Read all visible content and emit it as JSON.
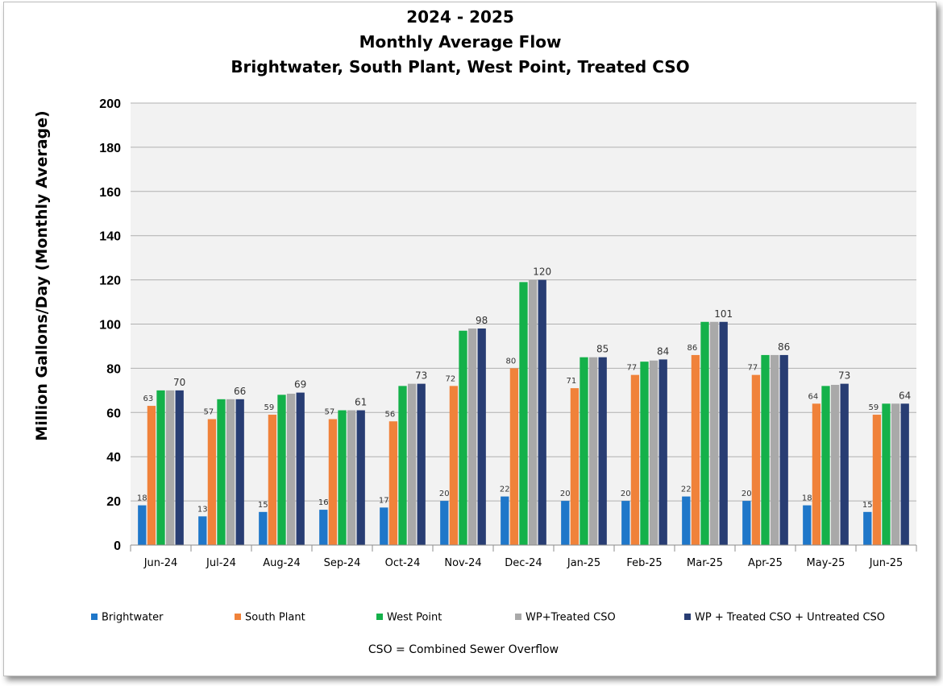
{
  "chart_data": {
    "type": "bar",
    "title_lines": [
      "2024 - 2025",
      "Monthly Average Flow",
      "Brightwater, South Plant, West Point, Treated CSO"
    ],
    "xlabel": "",
    "ylabel": "Million Gallons/Day (Monthly Average)",
    "ylim": [
      0,
      200
    ],
    "yticks": [
      0,
      20,
      40,
      60,
      80,
      100,
      120,
      140,
      160,
      180,
      200
    ],
    "grid": true,
    "legend_position": "bottom",
    "categories": [
      "Jun-24",
      "Jul-24",
      "Aug-24",
      "Sep-24",
      "Oct-24",
      "Nov-24",
      "Dec-24",
      "Jan-25",
      "Feb-25",
      "Mar-25",
      "Apr-25",
      "May-25",
      "Jun-25"
    ],
    "series": [
      {
        "name": "Brightwater",
        "color": "#1f77c9",
        "values": [
          18,
          13,
          15,
          16,
          17,
          20,
          22,
          20,
          20,
          22,
          20,
          18,
          15
        ],
        "labels": [
          "18",
          "13",
          "15",
          "16",
          "17",
          "20",
          "22",
          "20",
          "20",
          "22",
          "20",
          "18",
          "15"
        ]
      },
      {
        "name": "South Plant",
        "color": "#f0823a",
        "values": [
          63,
          57,
          59,
          57,
          56,
          72,
          80,
          71,
          77,
          86,
          77,
          64,
          59
        ],
        "labels": [
          "63",
          "57",
          "59",
          "57",
          "56",
          "72",
          "80",
          "71",
          "77",
          "86",
          "77",
          "64",
          "59"
        ]
      },
      {
        "name": "West Point",
        "color": "#14b14a",
        "values": [
          70,
          66,
          68,
          61,
          72,
          97,
          119,
          85,
          83,
          101,
          86,
          72,
          64
        ],
        "labels": [
          "",
          "",
          "",
          "",
          "",
          "",
          "",
          "",
          "",
          "",
          "",
          "",
          ""
        ]
      },
      {
        "name": "WP+Treated CSO",
        "color": "#a9a9a9",
        "values": [
          70,
          66,
          68.5,
          61,
          73,
          98,
          120,
          85,
          83.5,
          101,
          86,
          72.5,
          64
        ],
        "labels": [
          "",
          "",
          "",
          "",
          "",
          "",
          "",
          "",
          "",
          "",
          "",
          "",
          ""
        ]
      },
      {
        "name": "WP + Treated CSO + Untreated CSO",
        "color": "#283d73",
        "values": [
          70,
          66,
          69,
          61,
          73,
          98,
          120,
          85,
          84,
          101,
          86,
          73,
          64
        ],
        "labels": [
          "70",
          "66",
          "69",
          "61",
          "73",
          "98",
          "120",
          "85",
          "84",
          "101",
          "86",
          "73",
          "64"
        ]
      }
    ],
    "plot_background": "#f2f2f2",
    "gridline_color": "#b0b0b0"
  },
  "footnote": "CSO = Combined Sewer Overflow"
}
